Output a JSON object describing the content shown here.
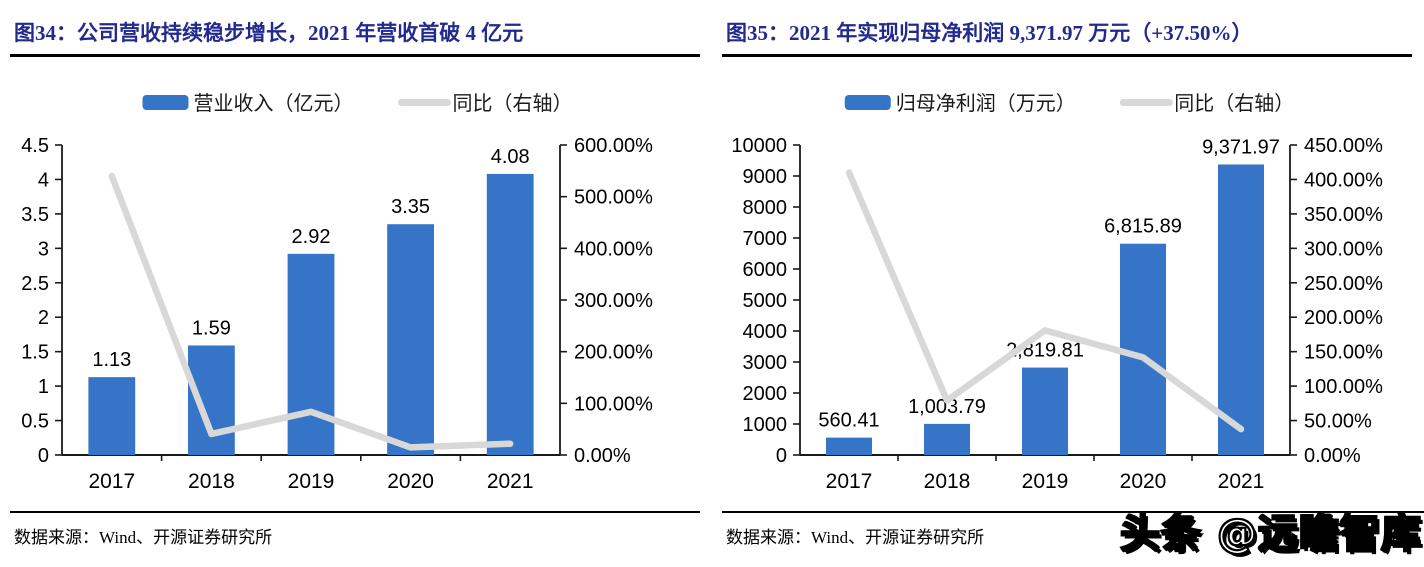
{
  "watermark": {
    "text": "头条 @远瞻智库"
  },
  "charts": [
    {
      "title": "图34：公司营收持续稳步增长，2021 年营收首破 4 亿元",
      "source": "数据来源：Wind、开源证券研究所",
      "colors": {
        "bar": "#3574C6",
        "line": "#D8D8D8",
        "axis": "#1a1a1a",
        "title": "#232a8e"
      },
      "legend": [
        {
          "type": "bar",
          "label": "营业收入（亿元）"
        },
        {
          "type": "line",
          "label": "同比（右轴）"
        }
      ],
      "chart_data": {
        "type": "bar",
        "categories": [
          "2017",
          "2018",
          "2019",
          "2020",
          "2021"
        ],
        "series": [
          {
            "name": "营业收入（亿元）",
            "kind": "bar",
            "axis": "left",
            "values": [
              1.13,
              1.59,
              2.92,
              3.35,
              4.08
            ],
            "data_labels": [
              "1.13",
              "1.59",
              "2.92",
              "3.35",
              "4.08"
            ]
          },
          {
            "name": "同比（右轴）",
            "kind": "line",
            "axis": "right",
            "values": [
              540,
              40.7,
              83.6,
              14.7,
              21.8
            ]
          }
        ],
        "left_axis": {
          "min": 0,
          "max": 4.5,
          "ticks": [
            "4.5",
            "4",
            "3.5",
            "3",
            "2.5",
            "2",
            "1.5",
            "1",
            "0.5",
            "0"
          ]
        },
        "right_axis": {
          "min": 0,
          "max": 600,
          "ticks": [
            "600.00%",
            "500.00%",
            "400.00%",
            "300.00%",
            "200.00%",
            "100.00%",
            "0.00%"
          ]
        },
        "grid": false,
        "legend_position": "top"
      }
    },
    {
      "title": "图35：2021 年实现归母净利润 9,371.97 万元（+37.50%）",
      "source": "数据来源：Wind、开源证券研究所",
      "colors": {
        "bar": "#3574C6",
        "line": "#D8D8D8",
        "axis": "#1a1a1a",
        "title": "#232a8e"
      },
      "legend": [
        {
          "type": "bar",
          "label": "归母净利润（万元）"
        },
        {
          "type": "line",
          "label": "同比（右轴）"
        }
      ],
      "chart_data": {
        "type": "bar",
        "categories": [
          "2017",
          "2018",
          "2019",
          "2020",
          "2021"
        ],
        "series": [
          {
            "name": "归母净利润（万元）",
            "kind": "bar",
            "axis": "left",
            "values": [
              560.41,
              1003.79,
              2819.81,
              6815.89,
              9371.97
            ],
            "data_labels": [
              "560.41",
              "1,003.79",
              "2,819.81",
              "6,815.89",
              "9,371.97"
            ]
          },
          {
            "name": "同比（右轴）",
            "kind": "line",
            "axis": "right",
            "values": [
              410,
              79.1,
              180.9,
              141.7,
              37.5
            ]
          }
        ],
        "left_axis": {
          "min": 0,
          "max": 10000,
          "ticks": [
            "10000",
            "9000",
            "8000",
            "7000",
            "6000",
            "5000",
            "4000",
            "3000",
            "2000",
            "1000",
            "0"
          ]
        },
        "right_axis": {
          "min": 0,
          "max": 450,
          "ticks": [
            "450.00%",
            "400.00%",
            "350.00%",
            "300.00%",
            "250.00%",
            "200.00%",
            "150.00%",
            "100.00%",
            "50.00%",
            "0.00%"
          ]
        },
        "grid": false,
        "legend_position": "top"
      }
    }
  ]
}
